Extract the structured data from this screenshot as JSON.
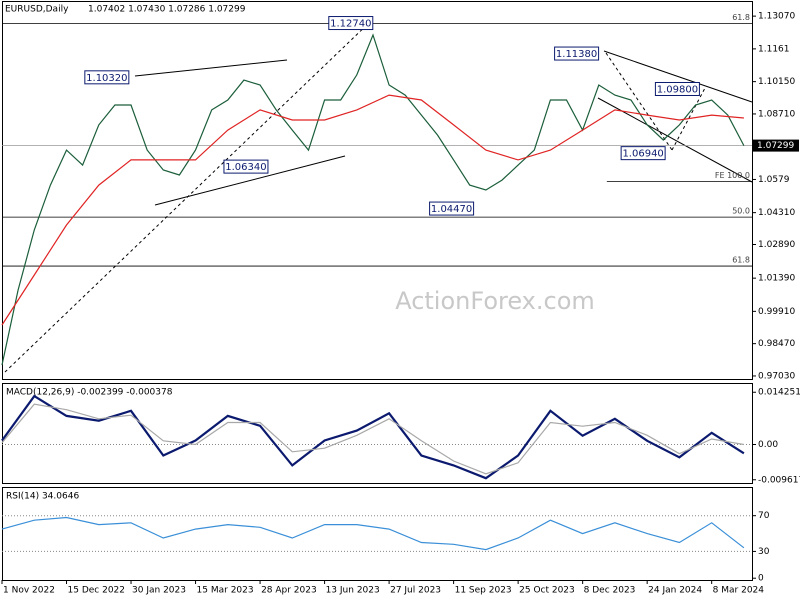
{
  "chart_data": [
    {
      "type": "line",
      "title": "EURUSD,Daily",
      "subtitle": "1.07402 1.07430 1.07286 1.07299",
      "watermark": "ActionForex.com",
      "xlim": [
        0,
        372
      ],
      "ylim": [
        0.9685,
        1.137
      ],
      "yticks": [
        {
          "value": 1.1307,
          "label": "1.13070"
        },
        1.1161,
        {
          "value": 1.1015,
          "label": "1.10150"
        },
        {
          "value": 1.0871,
          "label": "1.08710"
        },
        1.0579,
        {
          "value": 1.0431,
          "label": "1.04310"
        },
        {
          "value": 1.0289,
          "label": "1.02890"
        },
        {
          "value": 1.0139,
          "label": "1.01390"
        },
        {
          "value": 0.9991,
          "label": "0.99910"
        },
        {
          "value": 0.9847,
          "label": "0.98470"
        },
        {
          "value": 0.9703,
          "label": "0.97030"
        }
      ],
      "last_price": 1.07299,
      "series": [
        {
          "color": "#1b5e3a",
          "x": [
            0,
            8,
            16,
            24,
            32,
            40,
            48,
            56,
            64,
            72,
            80,
            88,
            96,
            104,
            112,
            120,
            128,
            136,
            144,
            152,
            160,
            168,
            176,
            184,
            192,
            200,
            208,
            216,
            224,
            232,
            240,
            248,
            256,
            264,
            272,
            280,
            288,
            296,
            304,
            312,
            320,
            328,
            336,
            344,
            352,
            360,
            368
          ],
          "values": [
            0.9752,
            1.0086,
            1.0354,
            1.0554,
            1.071,
            1.0643,
            1.0822,
            1.0911,
            1.0911,
            1.071,
            1.0621,
            1.0599,
            1.071,
            1.0889,
            1.0933,
            1.1022,
            1.1,
            1.0889,
            1.0799,
            1.071,
            1.0933,
            1.0933,
            1.1045,
            1.1223,
            1.1,
            1.0955,
            1.0866,
            1.0777,
            1.0666,
            1.0554,
            1.0532,
            1.0576,
            1.0643,
            1.071,
            1.0933,
            1.0933,
            1.0799,
            1.1,
            1.0955,
            1.0933,
            1.0822,
            1.0755,
            1.0822,
            1.0911,
            1.0933,
            1.0866,
            1.073
          ]
        },
        {
          "color": "#e02424",
          "x": [
            0,
            16,
            32,
            48,
            64,
            80,
            96,
            112,
            128,
            144,
            160,
            176,
            192,
            208,
            224,
            240,
            256,
            272,
            288,
            304,
            320,
            336,
            352,
            368
          ],
          "values": [
            0.993,
            1.0153,
            1.0376,
            1.0554,
            1.0666,
            1.0666,
            1.0666,
            1.0799,
            1.0889,
            1.0844,
            1.0844,
            1.0889,
            1.0955,
            1.0933,
            1.0822,
            1.071,
            1.0666,
            1.071,
            1.0799,
            1.0889,
            1.0866,
            1.0844,
            1.0866,
            1.0853
          ]
        }
      ],
      "levels": [
        {
          "label": "61.8",
          "value": 1.1274
        },
        {
          "label": "FE 100.0",
          "value": 1.057,
          "from": 300
        },
        {
          "label": "50.0",
          "value": 1.0411
        },
        {
          "label": "61.8",
          "value": 1.0193
        }
      ],
      "callouts": {
        "x": [
          52,
          173,
          121,
          223,
          285,
          335,
          318
        ],
        "values": [
          1.1032,
          1.1274,
          1.0634,
          1.0447,
          1.1138,
          1.098,
          1.0694
        ],
        "value_labels": [
          "1.10320",
          "1.12740",
          "1.06340",
          "1.04470",
          "1.11380",
          "1.09800",
          "1.06940"
        ]
      }
    },
    {
      "type": "line",
      "title": "MACD(12,26,9) -0.002399 -0.000378",
      "xlim": [
        0,
        372
      ],
      "ylim": [
        -0.0105,
        0.0165
      ],
      "yticks": [
        0.014251,
        {
          "value": 0,
          "label": "0.00"
        },
        -0.009617
      ],
      "levels": [
        0
      ],
      "x": [
        0,
        16,
        32,
        48,
        64,
        80,
        96,
        112,
        128,
        144,
        160,
        176,
        192,
        208,
        224,
        240,
        256,
        272,
        288,
        304,
        320,
        336,
        352,
        368
      ],
      "series": [
        {
          "color": "#0b1a6e",
          "values": [
            0.0011,
            0.0132,
            0.0078,
            0.0065,
            0.0092,
            -0.003,
            0.0011,
            0.0078,
            0.0051,
            -0.0057,
            0.0011,
            0.0038,
            0.0085,
            -0.003,
            -0.0057,
            -0.0092,
            -0.003,
            0.0092,
            0.0024,
            0.007,
            0.001,
            -0.0035,
            0.0032,
            -0.0024
          ]
        },
        {
          "color": "#a8a8a8",
          "values": [
            0.0005,
            0.011,
            0.0095,
            0.007,
            0.008,
            0.001,
            0.0,
            0.006,
            0.006,
            -0.002,
            -0.001,
            0.0025,
            0.007,
            0.001,
            -0.0045,
            -0.008,
            -0.005,
            0.006,
            0.005,
            0.006,
            0.0025,
            -0.0025,
            0.0015,
            0.0
          ]
        }
      ]
    },
    {
      "type": "line",
      "title": "RSI(14) 34.0646",
      "xlim": [
        0,
        372
      ],
      "ylim": [
        -2,
        101
      ],
      "yticks": [
        70,
        30,
        0
      ],
      "levels": [
        70,
        30
      ],
      "x": [
        0,
        16,
        32,
        48,
        64,
        80,
        96,
        112,
        128,
        144,
        160,
        176,
        192,
        208,
        224,
        240,
        256,
        272,
        288,
        304,
        320,
        336,
        352,
        368
      ],
      "series": [
        {
          "color": "#3a8fd8",
          "values": [
            55,
            65,
            68,
            60,
            62,
            45,
            55,
            60,
            57,
            45,
            60,
            60,
            55,
            40,
            38,
            32,
            45,
            65,
            50,
            62,
            50,
            40,
            62,
            34
          ]
        }
      ],
      "xticks": [
        {
          "value": 0,
          "label": "1 Nov 2022"
        },
        {
          "value": 32,
          "label": "15 Dec 2022"
        },
        {
          "value": 64,
          "label": "30 Jan 2023"
        },
        {
          "value": 96,
          "label": "15 Mar 2023"
        },
        {
          "value": 128,
          "label": "28 Apr 2023"
        },
        {
          "value": 160,
          "label": "13 Jun 2023"
        },
        {
          "value": 192,
          "label": "27 Jul 2023"
        },
        {
          "value": 224,
          "label": "11 Sep 2023"
        },
        {
          "value": 256,
          "label": "25 Oct 2023"
        },
        {
          "value": 288,
          "label": "8 Dec 2023"
        },
        {
          "value": 320,
          "label": "24 Jan 2024"
        },
        {
          "value": 352,
          "label": "8 Mar 2024"
        }
      ]
    }
  ]
}
